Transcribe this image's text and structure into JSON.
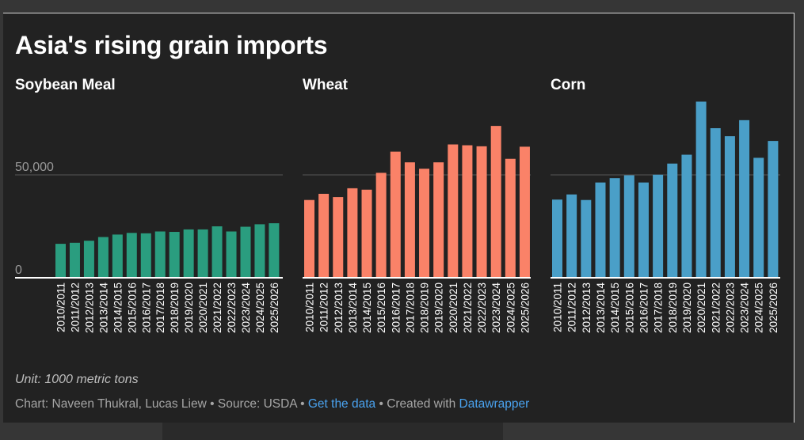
{
  "title": "Asia's rising grain imports",
  "unit_note": "Unit: 1000 metric tons",
  "footer": {
    "credit": "Chart: Naveen Thukral, Lucas Liew",
    "sep": " • ",
    "source": "Source: USDA",
    "get_data": "Get the data",
    "created": "Created with",
    "created_link": "Datawrapper"
  },
  "colors": {
    "background": "#222222",
    "grid": "#555555",
    "text": "#ffffff",
    "soybean": "#2a9d7f",
    "wheat": "#fa8268",
    "corn": "#4a9fc8"
  },
  "chart_data": [
    {
      "type": "bar",
      "title": "Soybean Meal",
      "categories": [
        "2010/2011",
        "2011/2012",
        "2012/2013",
        "2013/2014",
        "2014/2015",
        "2015/2016",
        "2016/2017",
        "2017/2018",
        "2018/2019",
        "2019/2020",
        "2020/2021",
        "2021/2022",
        "2022/2023",
        "2023/2024",
        "2024/2025",
        "2025/2026"
      ],
      "values": [
        16500,
        17000,
        18000,
        19800,
        21000,
        21800,
        21600,
        22500,
        22300,
        23500,
        23500,
        25000,
        22500,
        24800,
        26000,
        26500
      ],
      "ylim": [
        0,
        90000
      ],
      "yticks": [
        {
          "value": 0,
          "label": "0"
        },
        {
          "value": 50000,
          "label": "50,000"
        }
      ],
      "color": "#2a9d7f"
    },
    {
      "type": "bar",
      "title": "Wheat",
      "categories": [
        "2010/2011",
        "2011/2012",
        "2012/2013",
        "2013/2014",
        "2014/2015",
        "2015/2016",
        "2016/2017",
        "2017/2018",
        "2018/2019",
        "2019/2020",
        "2020/2021",
        "2021/2022",
        "2022/2023",
        "2023/2024",
        "2024/2025",
        "2025/2026"
      ],
      "values": [
        37800,
        40800,
        39200,
        43500,
        42800,
        51000,
        61300,
        56100,
        53000,
        56100,
        64800,
        64400,
        63900,
        73800,
        57800,
        63700
      ],
      "ylim": [
        0,
        90000
      ],
      "yticks": [
        {
          "value": 0,
          "label": "0"
        },
        {
          "value": 50000,
          "label": "50,000"
        }
      ],
      "color": "#fa8268"
    },
    {
      "type": "bar",
      "title": "Corn",
      "categories": [
        "2010/2011",
        "2011/2012",
        "2012/2013",
        "2013/2014",
        "2014/2015",
        "2015/2016",
        "2016/2017",
        "2017/2018",
        "2018/2019",
        "2019/2020",
        "2020/2021",
        "2021/2022",
        "2022/2023",
        "2023/2024",
        "2024/2025",
        "2025/2026"
      ],
      "values": [
        38000,
        40500,
        37800,
        46300,
        48400,
        49800,
        46300,
        50100,
        55500,
        59800,
        85600,
        72700,
        68800,
        76600,
        58300,
        66500
      ],
      "ylim": [
        0,
        90000
      ],
      "yticks": [
        {
          "value": 0,
          "label": "0"
        },
        {
          "value": 50000,
          "label": "50,000"
        }
      ],
      "color": "#4a9fc8"
    }
  ]
}
